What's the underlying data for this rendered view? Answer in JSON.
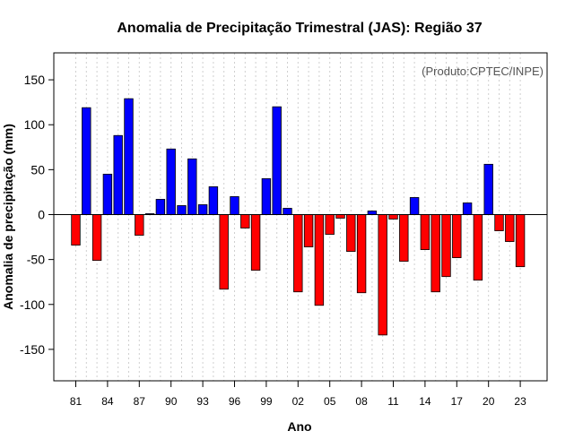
{
  "chart_data": {
    "type": "bar",
    "title": "Anomalia de Precipitação Trimestral (JAS): Região 37",
    "xlabel": "Ano",
    "ylabel": "Anomalia de precipitação (mm)",
    "credit": "(Produto:CPTEC/INPE)",
    "ylim": [
      -185,
      180
    ],
    "yticks": [
      -150,
      -100,
      -50,
      0,
      50,
      100,
      150
    ],
    "first_year": 1981,
    "xtick_every": 3,
    "grid": "vertical dotted, one per year",
    "colors": {
      "positive": "#0000ff",
      "negative": "#ff0000"
    },
    "categories": [
      "1981",
      "1982",
      "1983",
      "1984",
      "1985",
      "1986",
      "1987",
      "1988",
      "1989",
      "1990",
      "1991",
      "1992",
      "1993",
      "1994",
      "1995",
      "1996",
      "1997",
      "1998",
      "1999",
      "2000",
      "2001",
      "2002",
      "2003",
      "2004",
      "2005",
      "2006",
      "2007",
      "2008",
      "2009",
      "2010",
      "2011",
      "2012",
      "2013",
      "2014",
      "2015",
      "2016",
      "2017",
      "2018",
      "2019",
      "2020",
      "2021",
      "2022",
      "2023"
    ],
    "xtick_labels": [
      "81",
      "84",
      "87",
      "90",
      "93",
      "96",
      "99",
      "02",
      "05",
      "08",
      "11",
      "14",
      "17",
      "20",
      "23"
    ],
    "values": [
      -34,
      119,
      -51,
      45,
      88,
      129,
      -23,
      1,
      17,
      73,
      10,
      62,
      11,
      31,
      -83,
      20,
      -15,
      -62,
      40,
      120,
      7,
      -86,
      -36,
      -101,
      -22,
      -4,
      -41,
      -87,
      4,
      -134,
      -5,
      -52,
      19,
      -39,
      -86,
      -69,
      -48,
      13,
      -73,
      56,
      -18,
      -30,
      -58
    ]
  }
}
